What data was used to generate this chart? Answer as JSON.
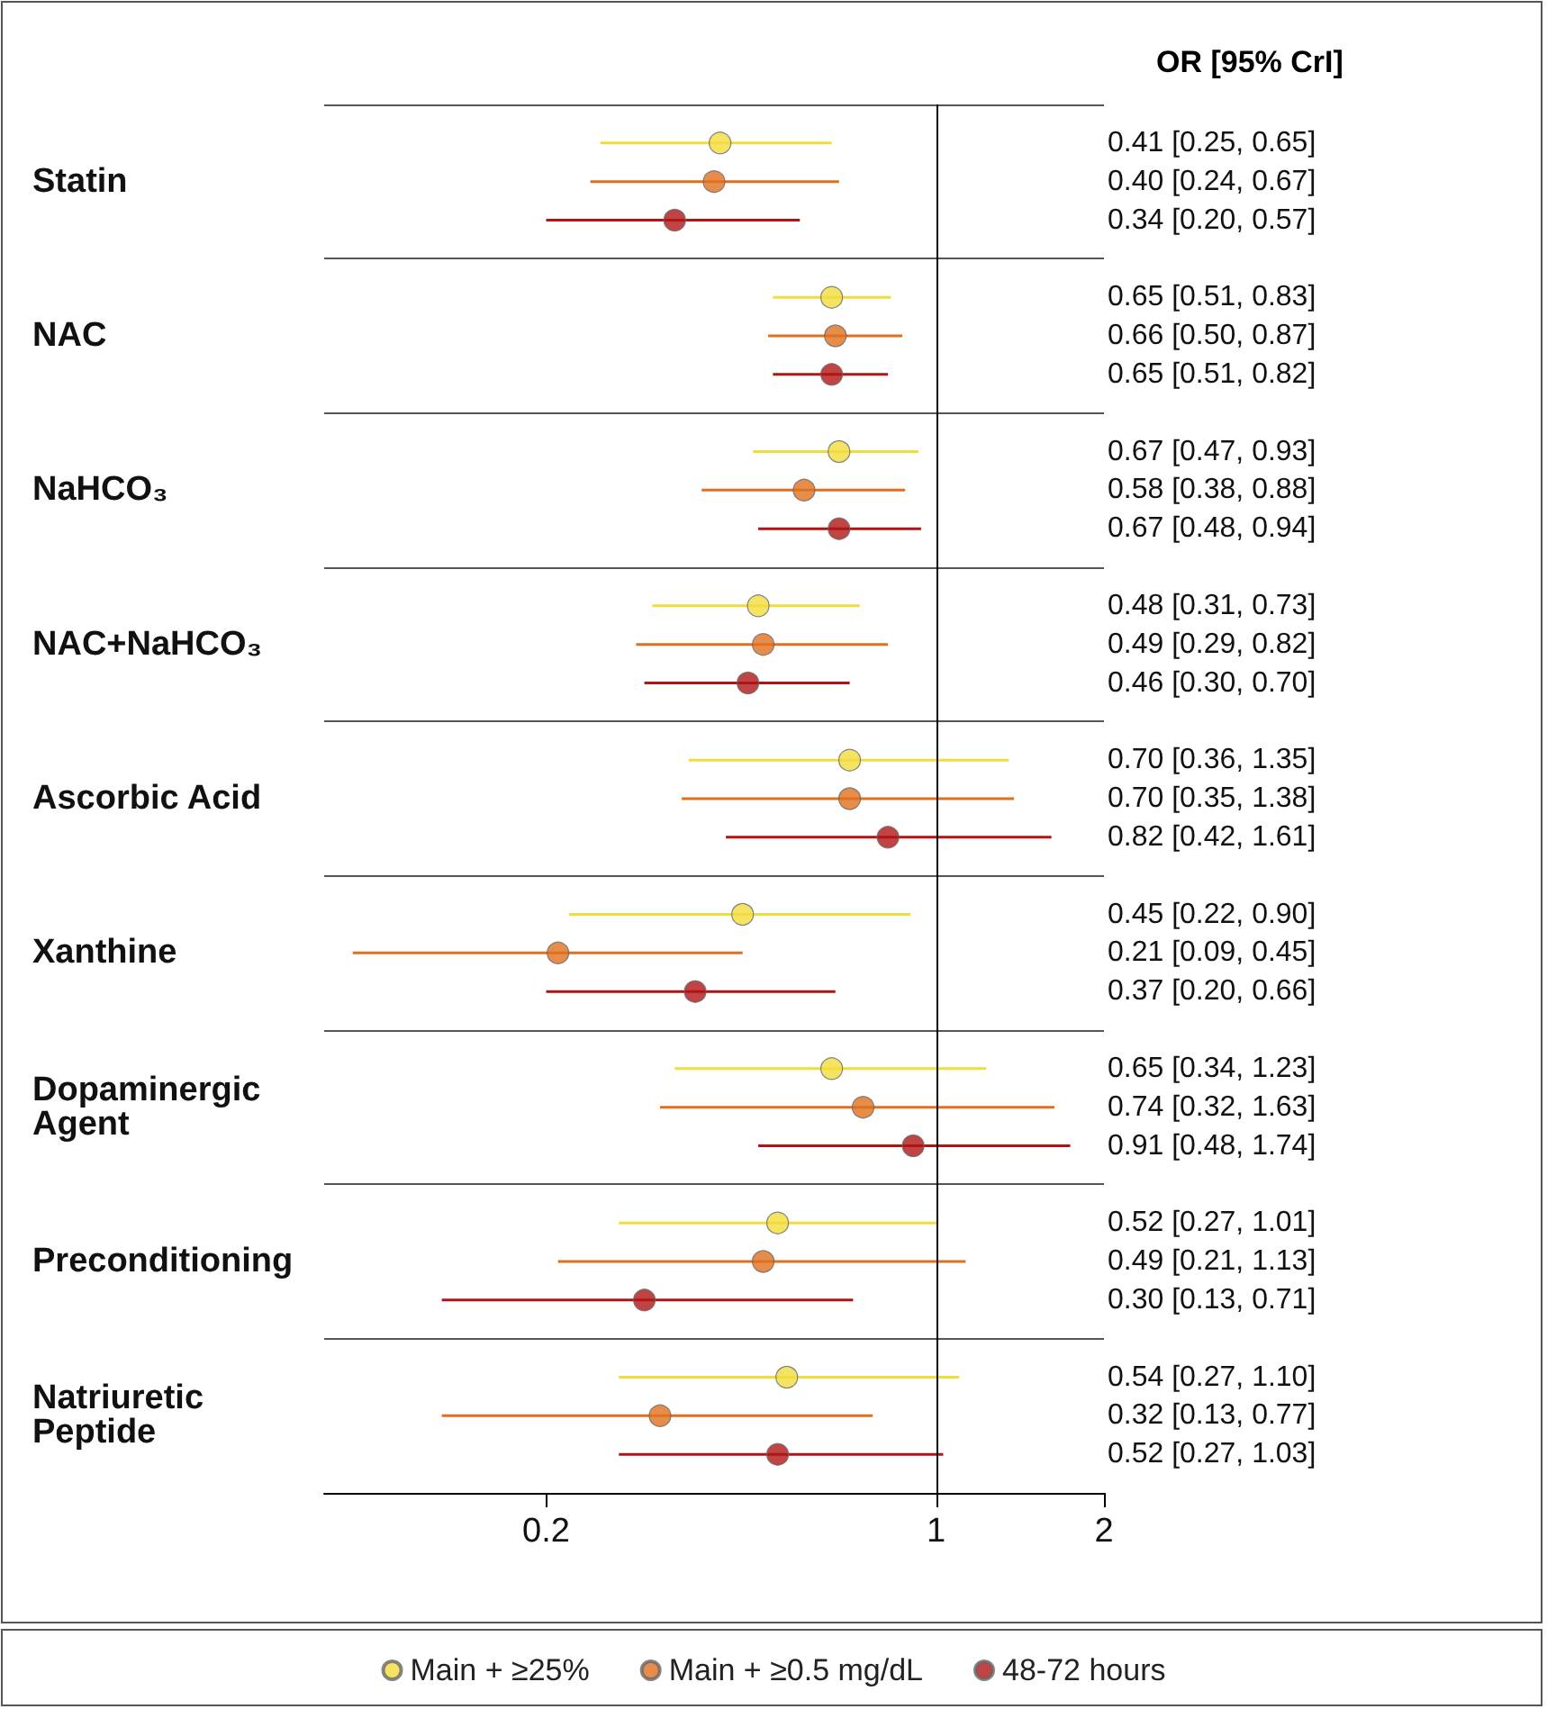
{
  "chart_data": {
    "type": "scatter",
    "orientation": "horizontal",
    "categories": [
      "Statin",
      "NAC",
      "NaHCO₃",
      "NAC+NaHCO₃",
      "Ascorbic Acid",
      "Xanthine",
      "Dopaminergic Agent",
      "Preconditioning",
      "Natriuretic Peptide"
    ],
    "series": [
      {
        "name": "Main + ≥25%",
        "color": "#f2dc3c",
        "values": [
          0.41,
          0.65,
          0.67,
          0.48,
          0.7,
          0.45,
          0.65,
          0.52,
          0.54
        ],
        "errors": [
          [
            0.25,
            0.65
          ],
          [
            0.51,
            0.83
          ],
          [
            0.47,
            0.93
          ],
          [
            0.31,
            0.73
          ],
          [
            0.36,
            1.35
          ],
          [
            0.22,
            0.9
          ],
          [
            0.34,
            1.23
          ],
          [
            0.27,
            1.01
          ],
          [
            0.27,
            1.1
          ]
        ]
      },
      {
        "name": "Main + ≥0.5 mg/dL",
        "color": "#e0701e",
        "values": [
          0.4,
          0.66,
          0.58,
          0.49,
          0.7,
          0.21,
          0.74,
          0.49,
          0.32
        ],
        "errors": [
          [
            0.24,
            0.67
          ],
          [
            0.5,
            0.87
          ],
          [
            0.38,
            0.88
          ],
          [
            0.29,
            0.82
          ],
          [
            0.35,
            1.38
          ],
          [
            0.09,
            0.45
          ],
          [
            0.32,
            1.63
          ],
          [
            0.21,
            1.13
          ],
          [
            0.13,
            0.77
          ]
        ]
      },
      {
        "name": "48-72 hours",
        "color": "#b01515",
        "values": [
          0.34,
          0.65,
          0.67,
          0.46,
          0.82,
          0.37,
          0.91,
          0.3,
          0.52
        ],
        "errors": [
          [
            0.2,
            0.57
          ],
          [
            0.51,
            0.82
          ],
          [
            0.48,
            0.94
          ],
          [
            0.3,
            0.7
          ],
          [
            0.42,
            1.61
          ],
          [
            0.2,
            0.66
          ],
          [
            0.48,
            1.74
          ],
          [
            0.13,
            0.71
          ],
          [
            0.27,
            1.03
          ]
        ]
      }
    ],
    "log": "x",
    "xlim": [
      0.08,
      2
    ],
    "xticks": [
      0.2,
      1,
      2
    ],
    "ref_lines": [
      {
        "axis": "x",
        "value": 1,
        "color": "#000000"
      }
    ],
    "annotations": [
      "OR [95% CrI]",
      "0.41 [0.25, 0.65]",
      "0.40 [0.24, 0.67]",
      "0.34 [0.20, 0.57]",
      "0.65 [0.51, 0.83]",
      "0.66 [0.50, 0.87]",
      "0.65 [0.51, 0.82]",
      "0.67 [0.47, 0.93]",
      "0.58 [0.38, 0.88]",
      "0.67 [0.48, 0.94]",
      "0.48 [0.31, 0.73]",
      "0.49 [0.29, 0.82]",
      "0.46 [0.30, 0.70]",
      "0.70 [0.36, 1.35]",
      "0.70 [0.35, 1.38]",
      "0.82 [0.42, 1.61]",
      "0.45 [0.22, 0.90]",
      "0.21 [0.09, 0.45]",
      "0.37 [0.20, 0.66]",
      "0.65 [0.34, 1.23]",
      "0.74 [0.32, 1.63]",
      "0.91 [0.48, 1.74]",
      "0.52 [0.27, 1.01]",
      "0.49 [0.21, 1.13]",
      "0.30 [0.13, 0.71]",
      "0.54 [0.27, 1.10]",
      "0.32 [0.13, 0.77]",
      "0.52 [0.27, 1.03]"
    ],
    "grid": false,
    "legend": "bottom",
    "marker": "circle"
  }
}
